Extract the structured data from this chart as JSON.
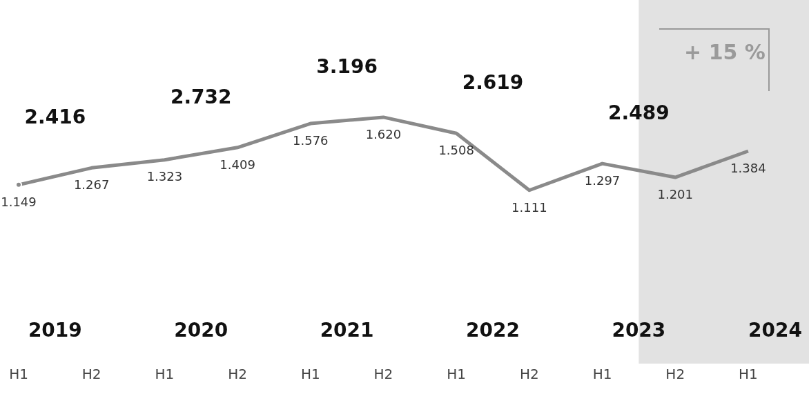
{
  "chart_data": {
    "type": "line",
    "x": [
      "2019-01",
      "2019-07",
      "2020-01",
      "2020-07",
      "2021-01",
      "2021-07",
      "2022-01",
      "2022-07",
      "2023-01",
      "2023-07",
      "2024-01"
    ],
    "xlim": [
      "2018-11-15",
      "2024-06"
    ],
    "xticks": [
      {
        "value": "2019-01",
        "label": "H1"
      },
      {
        "value": "2019-07",
        "label": "H2"
      },
      {
        "value": "2020-01",
        "label": "H1"
      },
      {
        "value": "2020-07",
        "label": "H2"
      },
      {
        "value": "2021-01",
        "label": "H1"
      },
      {
        "value": "2021-07",
        "label": "H2"
      },
      {
        "value": "2022-01",
        "label": "H1"
      },
      {
        "value": "2022-07",
        "label": "H2"
      },
      {
        "value": "2023-01",
        "label": "H1"
      },
      {
        "value": "2023-07",
        "label": "H2"
      },
      {
        "value": "2024-01",
        "label": "H1"
      }
    ],
    "series": [
      {
        "color": "#8a8a8a",
        "values": [
          1.149,
          1.267,
          1.323,
          1.409,
          1.576,
          1.62,
          1.508,
          1.111,
          1.297,
          1.201,
          1.384
        ],
        "value_labels": [
          "1.149",
          "1.267",
          "1.323",
          "1.409",
          "1.576",
          "1.620",
          "1.508",
          "1.111",
          "1.297",
          "1.201",
          "1.384"
        ]
      }
    ],
    "annotations": [
      "2.416",
      "2.732",
      "3.196",
      "2.619",
      "2.489",
      null,
      "2019",
      "2020",
      "2021",
      "2022",
      "2023",
      "2024",
      "+ 15 %"
    ],
    "bands": [
      {
        "axis": "x",
        "from": "2023-04",
        "to": "2024-06",
        "color": "#e2e2e2"
      }
    ],
    "marker": "none",
    "tick_labels": "x"
  }
}
